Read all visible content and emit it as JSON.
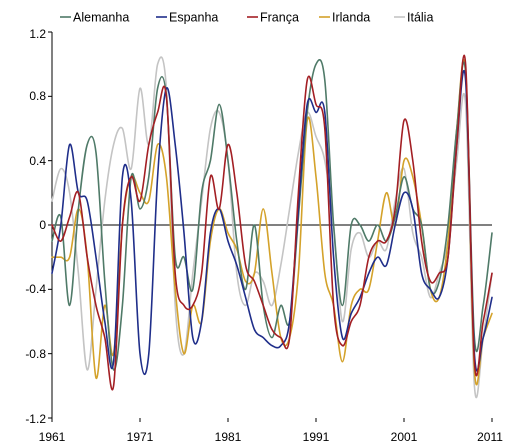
{
  "chart_data": {
    "type": "line",
    "title": "",
    "xlabel": "",
    "ylabel": "",
    "xlim": [
      1961,
      2011
    ],
    "ylim": [
      -1.2,
      1.2
    ],
    "x_ticks": [
      1961,
      1971,
      1981,
      1991,
      2001,
      2011
    ],
    "y_ticks": [
      1.2,
      0.8,
      0.4,
      0,
      -0.4,
      -0.8,
      -1.2
    ],
    "y_tick_labels": [
      "1.2",
      "0.8",
      "0.4",
      "0",
      "-0.4",
      "-0.8",
      "-1.2"
    ],
    "grid": false,
    "legend_position": "top",
    "series": [
      {
        "name": "Alemanha",
        "color": "#4f7a68",
        "x": [
          1961,
          1962,
          1963,
          1964,
          1965,
          1966,
          1967,
          1968,
          1969,
          1970,
          1971,
          1972,
          1973,
          1974,
          1975,
          1976,
          1977,
          1978,
          1979,
          1980,
          1981,
          1982,
          1983,
          1984,
          1985,
          1986,
          1987,
          1988,
          1989,
          1990,
          1991,
          1992,
          1993,
          1994,
          1995,
          1996,
          1997,
          1998,
          1999,
          2000,
          2001,
          2002,
          2003,
          2004,
          2005,
          2006,
          2007,
          2008,
          2009,
          2010,
          2011
        ],
        "values": [
          -0.1,
          0.05,
          -0.5,
          0.1,
          0.5,
          0.45,
          -0.35,
          -0.9,
          -0.5,
          0.3,
          0.1,
          0.3,
          0.85,
          0.8,
          -0.2,
          -0.2,
          -0.4,
          0.2,
          0.4,
          0.75,
          0.4,
          -0.1,
          -0.4,
          0.0,
          -0.5,
          -0.7,
          -0.5,
          -0.6,
          0.05,
          0.7,
          1.0,
          0.9,
          0.0,
          -0.5,
          0.0,
          0.0,
          -0.1,
          0.0,
          -0.1,
          0.05,
          0.3,
          0.1,
          0.0,
          -0.4,
          -0.35,
          0.0,
          0.6,
          0.95,
          -0.7,
          -0.5,
          -0.05
        ]
      },
      {
        "name": "Espanha",
        "color": "#1f2e8a",
        "x": [
          1961,
          1962,
          1963,
          1964,
          1965,
          1966,
          1967,
          1968,
          1969,
          1970,
          1971,
          1972,
          1973,
          1974,
          1975,
          1976,
          1977,
          1978,
          1979,
          1980,
          1981,
          1982,
          1983,
          1984,
          1985,
          1986,
          1987,
          1988,
          1989,
          1990,
          1991,
          1992,
          1993,
          1994,
          1995,
          1996,
          1997,
          1998,
          1999,
          2000,
          2001,
          2002,
          2003,
          2004,
          2005,
          2006,
          2007,
          2008,
          2009,
          2010,
          2011
        ],
        "values": [
          -0.3,
          0.0,
          0.5,
          0.2,
          0.15,
          -0.2,
          -0.6,
          -0.85,
          0.3,
          0.15,
          -0.8,
          -0.8,
          0.3,
          0.85,
          0.5,
          -0.05,
          -0.7,
          -0.6,
          -0.05,
          0.1,
          -0.1,
          -0.25,
          -0.45,
          -0.65,
          -0.7,
          -0.75,
          -0.75,
          -0.6,
          0.1,
          0.75,
          0.7,
          0.7,
          -0.2,
          -0.7,
          -0.55,
          -0.45,
          -0.3,
          -0.2,
          -0.25,
          0.0,
          0.2,
          0.1,
          -0.3,
          -0.4,
          -0.45,
          -0.2,
          0.5,
          0.9,
          -0.8,
          -0.7,
          -0.45
        ]
      },
      {
        "name": "França",
        "color": "#a31f24",
        "x": [
          1961,
          1962,
          1963,
          1964,
          1965,
          1966,
          1967,
          1968,
          1969,
          1970,
          1971,
          1972,
          1973,
          1974,
          1975,
          1976,
          1977,
          1978,
          1979,
          1980,
          1981,
          1982,
          1983,
          1984,
          1985,
          1986,
          1987,
          1988,
          1989,
          1990,
          1991,
          1992,
          1993,
          1994,
          1995,
          1996,
          1997,
          1998,
          1999,
          2000,
          2001,
          2002,
          2003,
          2004,
          2005,
          2006,
          2007,
          2008,
          2009,
          2010,
          2011
        ],
        "values": [
          0.0,
          -0.1,
          0.05,
          0.2,
          -0.2,
          -0.5,
          -0.7,
          -1.0,
          0.0,
          0.3,
          0.15,
          0.5,
          0.7,
          0.8,
          -0.3,
          -0.5,
          -0.5,
          -0.3,
          0.3,
          0.1,
          0.5,
          0.2,
          -0.25,
          -0.35,
          -0.5,
          -0.65,
          -0.7,
          -0.7,
          0.2,
          0.9,
          0.75,
          0.6,
          -0.5,
          -0.75,
          -0.6,
          -0.5,
          -0.2,
          -0.1,
          -0.1,
          0.1,
          0.65,
          0.4,
          -0.1,
          -0.35,
          -0.3,
          -0.2,
          0.5,
          1.0,
          -0.85,
          -0.6,
          -0.3
        ]
      },
      {
        "name": "Irlanda",
        "color": "#d4a22a",
        "x": [
          1961,
          1962,
          1963,
          1964,
          1965,
          1966,
          1967,
          1968,
          1969,
          1970,
          1971,
          1972,
          1973,
          1974,
          1975,
          1976,
          1977,
          1978,
          1979,
          1980,
          1981,
          1982,
          1983,
          1984,
          1985,
          1986,
          1987,
          1988,
          1989,
          1990,
          1991,
          1992,
          1993,
          1994,
          1995,
          1996,
          1997,
          1998,
          1999,
          2000,
          2001,
          2002,
          2003,
          2004,
          2005,
          2006,
          2007,
          2008,
          2009,
          2010,
          2011
        ],
        "values": [
          -0.2,
          -0.2,
          -0.2,
          0.1,
          -0.2,
          -0.95,
          -0.5,
          -0.8,
          0.0,
          0.3,
          0.2,
          0.15,
          0.5,
          0.3,
          -0.4,
          -0.8,
          -0.5,
          -0.6,
          -0.1,
          0.1,
          -0.05,
          -0.15,
          -0.35,
          -0.3,
          0.1,
          -0.3,
          -0.7,
          -0.7,
          -0.3,
          0.65,
          0.3,
          -0.3,
          -0.5,
          -0.85,
          -0.5,
          -0.4,
          -0.4,
          -0.1,
          0.2,
          0.0,
          0.4,
          0.3,
          0.0,
          -0.4,
          -0.45,
          -0.1,
          0.6,
          0.95,
          -0.9,
          -0.7,
          -0.55
        ]
      },
      {
        "name": "Itália",
        "color": "#c4c4c4",
        "x": [
          1961,
          1962,
          1963,
          1964,
          1965,
          1966,
          1967,
          1968,
          1969,
          1970,
          1971,
          1972,
          1973,
          1974,
          1975,
          1976,
          1977,
          1978,
          1979,
          1980,
          1981,
          1982,
          1983,
          1984,
          1985,
          1986,
          1987,
          1988,
          1989,
          1990,
          1991,
          1992,
          1993,
          1994,
          1995,
          1996,
          1997,
          1998,
          1999,
          2000,
          2001,
          2002,
          2003,
          2004,
          2005,
          2006,
          2007,
          2008,
          2009,
          2010,
          2011
        ],
        "values": [
          0.15,
          0.35,
          0.2,
          -0.3,
          -0.9,
          -0.4,
          0.15,
          0.5,
          0.6,
          0.35,
          0.85,
          0.5,
          1.0,
          0.85,
          -0.5,
          -0.8,
          -0.3,
          0.15,
          0.6,
          0.7,
          0.4,
          -0.3,
          -0.5,
          -0.3,
          -0.35,
          -0.5,
          -0.25,
          0.1,
          0.45,
          0.7,
          0.55,
          0.4,
          0.0,
          -0.6,
          -0.15,
          -0.05,
          -0.2,
          -0.1,
          -0.15,
          0.15,
          0.35,
          -0.05,
          -0.2,
          -0.45,
          -0.3,
          -0.1,
          0.4,
          0.75,
          -1.0,
          -0.7,
          -0.3
        ]
      }
    ]
  }
}
